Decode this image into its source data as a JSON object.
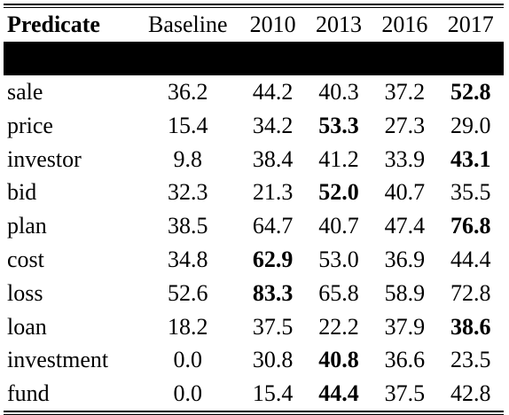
{
  "table": {
    "headers": [
      "Predicate",
      "Baseline",
      "2010",
      "2013",
      "2016",
      "2017"
    ],
    "rows": [
      {
        "predicate": "sale",
        "values": [
          "36.2",
          "44.2",
          "40.3",
          "37.2",
          "52.8"
        ],
        "bold": [
          false,
          false,
          false,
          false,
          true
        ]
      },
      {
        "predicate": "price",
        "values": [
          "15.4",
          "34.2",
          "53.3",
          "27.3",
          "29.0"
        ],
        "bold": [
          false,
          false,
          true,
          false,
          false
        ]
      },
      {
        "predicate": "investor",
        "values": [
          "9.8",
          "38.4",
          "41.2",
          "33.9",
          "43.1"
        ],
        "bold": [
          false,
          false,
          false,
          false,
          true
        ]
      },
      {
        "predicate": "bid",
        "values": [
          "32.3",
          "21.3",
          "52.0",
          "40.7",
          "35.5"
        ],
        "bold": [
          false,
          false,
          true,
          false,
          false
        ]
      },
      {
        "predicate": "plan",
        "values": [
          "38.5",
          "64.7",
          "40.7",
          "47.4",
          "76.8"
        ],
        "bold": [
          false,
          false,
          false,
          false,
          true
        ]
      },
      {
        "predicate": "cost",
        "values": [
          "34.8",
          "62.9",
          "53.0",
          "36.9",
          "44.4"
        ],
        "bold": [
          false,
          true,
          false,
          false,
          false
        ]
      },
      {
        "predicate": "loss",
        "values": [
          "52.6",
          "83.3",
          "65.8",
          "58.9",
          "72.8"
        ],
        "bold": [
          false,
          true,
          false,
          false,
          false
        ]
      },
      {
        "predicate": "loan",
        "values": [
          "18.2",
          "37.5",
          "22.2",
          "37.9",
          "38.6"
        ],
        "bold": [
          false,
          false,
          false,
          false,
          true
        ]
      },
      {
        "predicate": "investment",
        "values": [
          "0.0",
          "30.8",
          "40.8",
          "36.6",
          "23.5"
        ],
        "bold": [
          false,
          false,
          true,
          false,
          false
        ]
      },
      {
        "predicate": "fund",
        "values": [
          "0.0",
          "15.4",
          "44.4",
          "37.5",
          "42.8"
        ],
        "bold": [
          false,
          false,
          true,
          false,
          false
        ]
      }
    ]
  }
}
